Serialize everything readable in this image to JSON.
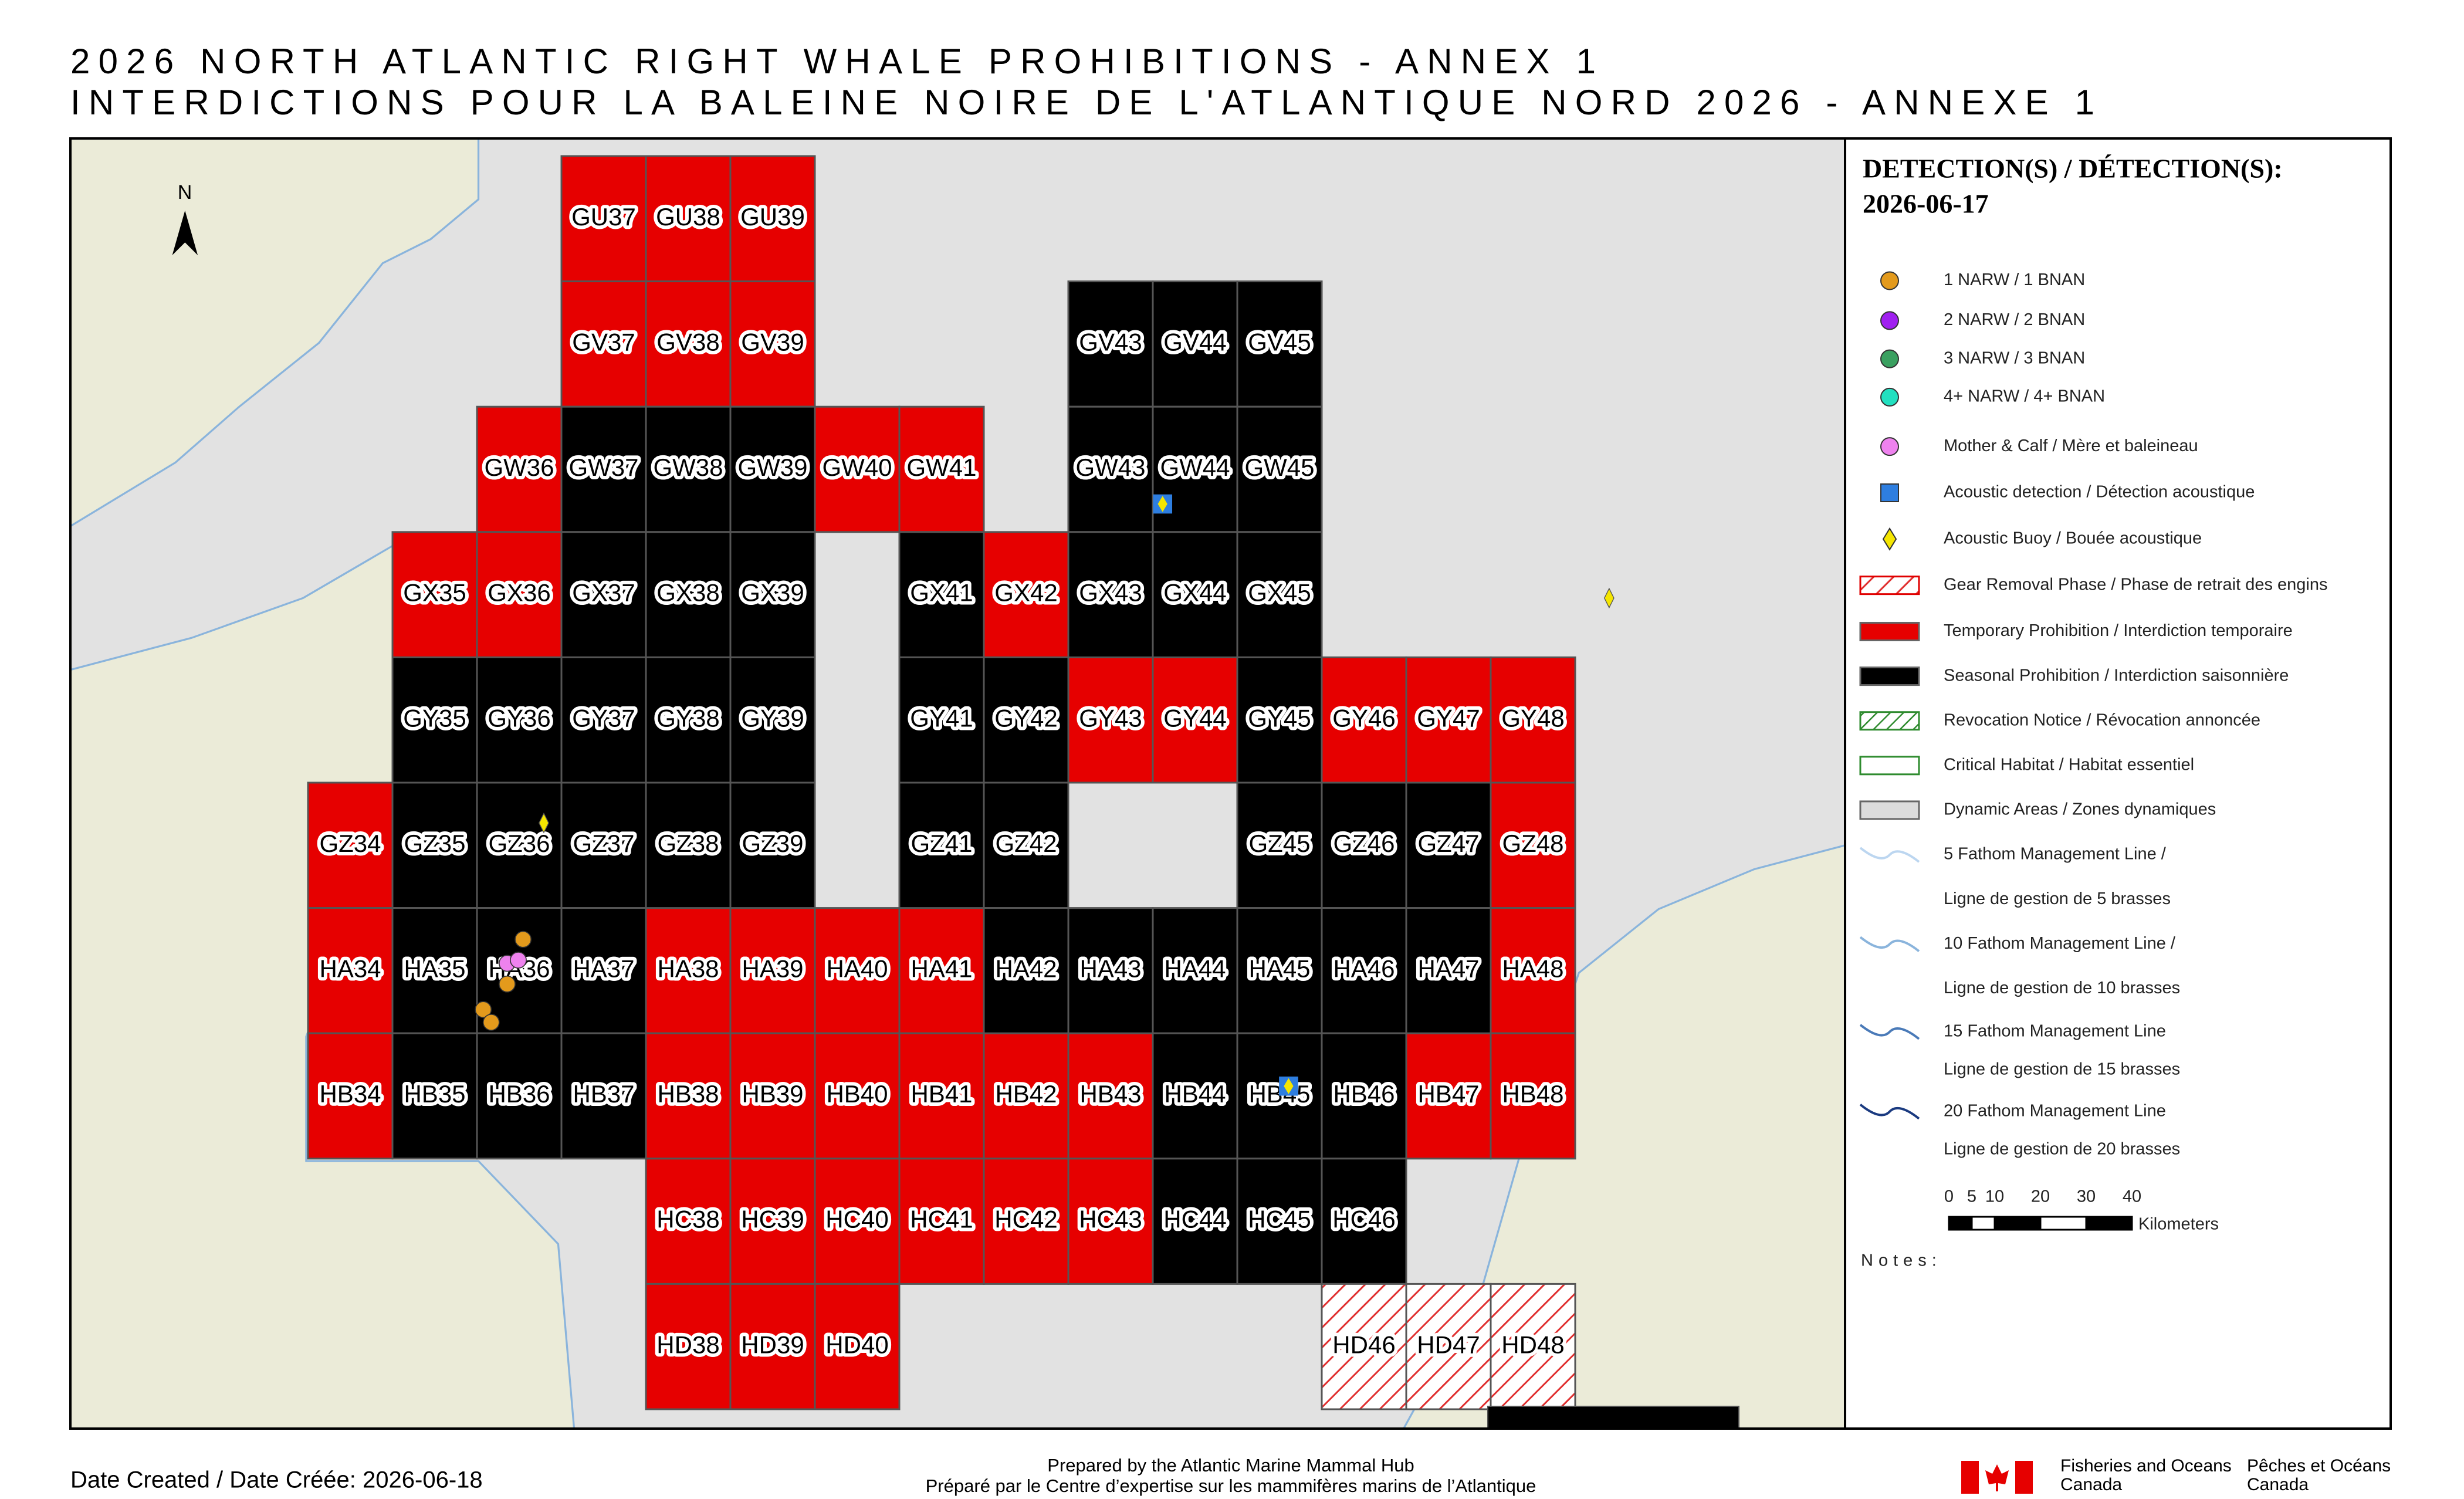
{
  "title": {
    "line1": "2026 NORTH ATLANTIC RIGHT WHALE PROHIBITIONS - ANNEX 1",
    "line2": "INTERDICTIONS POUR LA BALEINE NOIRE DE L'ATLANTIQUE NORD 2026 - ANNEXE 1"
  },
  "map": {
    "north": "N",
    "temporary_prohibition": [
      "GU37",
      "GU38",
      "GU39",
      "GV37",
      "GV38",
      "GV39",
      "GW36",
      "GW40",
      "GW41",
      "GX35",
      "GX36",
      "GX42",
      "GY43",
      "GY44",
      "GY46",
      "GY47",
      "GY48",
      "GZ34",
      "GZ48",
      "HA34",
      "HA38",
      "HA39",
      "HA40",
      "HA41",
      "HA48",
      "HB34",
      "HB38",
      "HB39",
      "HB40",
      "HB41",
      "HB42",
      "HB43",
      "HB47",
      "HB48",
      "HC38",
      "HC39",
      "HC40",
      "HC41",
      "HC42",
      "HC43",
      "HD38",
      "HD39",
      "HD40"
    ],
    "seasonal_prohibition": [
      "GV43",
      "GV44",
      "GV45",
      "GW37",
      "GW38",
      "GW39",
      "GW43",
      "GW44",
      "GW45",
      "GX37",
      "GX38",
      "GX39",
      "GX41",
      "GX43",
      "GX44",
      "GX45",
      "GY35",
      "GY36",
      "GY37",
      "GY38",
      "GY39",
      "GY41",
      "GY42",
      "GY45",
      "GZ35",
      "GZ36",
      "GZ37",
      "GZ38",
      "GZ39",
      "GZ41",
      "GZ42",
      "GZ45",
      "GZ46",
      "GZ47",
      "HA35",
      "HA36",
      "HA37",
      "HA42",
      "HA43",
      "HA44",
      "HA45",
      "HA46",
      "HA47",
      "HB35",
      "HB36",
      "HB37",
      "HB44",
      "HB45",
      "HB46",
      "HC44",
      "HC45",
      "HC46"
    ],
    "gear_removal_phase": [
      "HD46",
      "HD47",
      "HD48"
    ]
  },
  "legend": {
    "title": "DETECTION(S) / DÉTECTION(S):",
    "date": "2026-06-17",
    "items": [
      {
        "label": "1 NARW / 1 BNAN",
        "symbol": "circle",
        "color": "#e39a1c"
      },
      {
        "label": "2 NARW / 2 BNAN",
        "symbol": "circle",
        "color": "#a020f0"
      },
      {
        "label": "3 NARW / 3 BNAN",
        "symbol": "circle",
        "color": "#3aa060"
      },
      {
        "label": "4+ NARW / 4+ BNAN",
        "symbol": "circle",
        "color": "#22e0c0"
      },
      {
        "label": "Mother & Calf / Mère et baleineau",
        "symbol": "circle",
        "color": "#ee82ee"
      },
      {
        "label": "Acoustic detection / Détection acoustique",
        "symbol": "square",
        "color": "#2e7ee0"
      },
      {
        "label": "Acoustic Buoy / Bouée acoustique",
        "symbol": "diamond",
        "color": "#f5e600"
      },
      {
        "label": "Gear Removal Phase / Phase de retrait des engins",
        "symbol": "hatch",
        "color": "#e00000"
      },
      {
        "label": "Temporary Prohibition / Interdiction temporaire",
        "symbol": "box",
        "color": "#e60000"
      },
      {
        "label": "Seasonal Prohibition / Interdiction saisonnière",
        "symbol": "box",
        "color": "#000000"
      },
      {
        "label": "Revocation Notice / Révocation annoncée",
        "symbol": "hatch",
        "color": "#2e8b2e"
      },
      {
        "label": "Critical Habitat / Habitat essentiel",
        "symbol": "outline",
        "color": "#2e8b2e"
      },
      {
        "label": "Dynamic Areas / Zones dynamiques",
        "symbol": "box",
        "color": "#dcdcdc"
      },
      {
        "label": "5 Fathom Management Line /",
        "label2": "Ligne de gestion de 5 brasses",
        "symbol": "line",
        "color": "#bcd6f0"
      },
      {
        "label": "10 Fathom Management Line /",
        "label2": "Ligne de gestion de 10 brasses",
        "symbol": "line",
        "color": "#8ab4dc"
      },
      {
        "label": "15 Fathom Management Line",
        "label2": "Ligne de gestion de 15 brasses",
        "symbol": "line",
        "color": "#4a7ab8"
      },
      {
        "label": "20 Fathom Management Line",
        "label2": "Ligne de gestion de 20 brasses",
        "symbol": "line",
        "color": "#1a3a80"
      }
    ],
    "scale": {
      "ticks": [
        0,
        5,
        10,
        20,
        30,
        40
      ],
      "unit": "Kilometers"
    },
    "notes": "Notes:"
  },
  "footer": {
    "date_created": "Date Created / Date Créée: 2026-06-18",
    "prepared_en": "Prepared by the Atlantic Marine Mammal Hub",
    "prepared_fr": "Préparé par le Centre d’expertise sur les mammifères marins de l’Atlantique",
    "dfo_en": [
      "Fisheries and Oceans",
      "Canada"
    ],
    "dfo_fr": [
      "Pêches et Océans",
      "Canada"
    ]
  }
}
